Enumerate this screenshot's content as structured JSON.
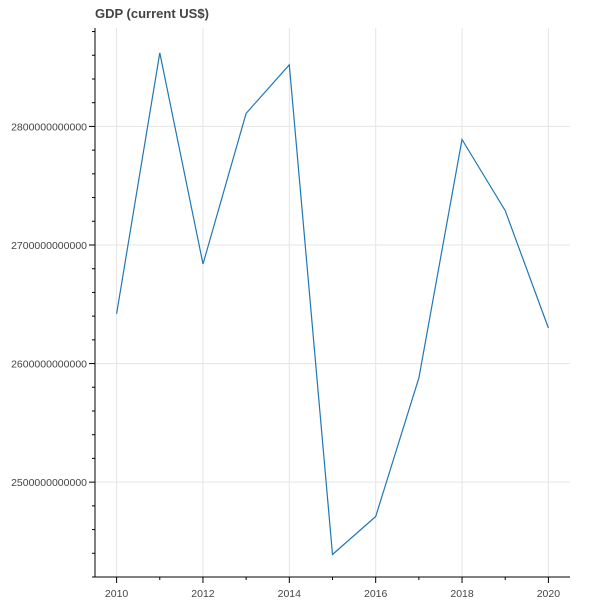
{
  "chart_data": {
    "type": "line",
    "title": "GDP (current US$)",
    "xlabel": "",
    "ylabel": "",
    "x": [
      2010,
      2011,
      2012,
      2013,
      2014,
      2015,
      2016,
      2017,
      2018,
      2019,
      2020
    ],
    "series": [
      {
        "values": [
          2642000000000,
          2862000000000,
          2684000000000,
          2811000000000,
          2852000000000,
          2439000000000,
          2471000000000,
          2588000000000,
          2789000000000,
          2729000000000,
          2630000000000
        ],
        "color": "#1f77b4"
      }
    ],
    "xticks": [
      "2010",
      "2012",
      "2014",
      "2016",
      "2018",
      "2020"
    ],
    "yticks": [
      "2500000000000",
      "2600000000000",
      "2700000000000",
      "2800000000000"
    ],
    "xlim": [
      2009.5,
      2020.5
    ],
    "ylim": [
      2420000000000,
      2883000000000
    ],
    "grid": true
  }
}
